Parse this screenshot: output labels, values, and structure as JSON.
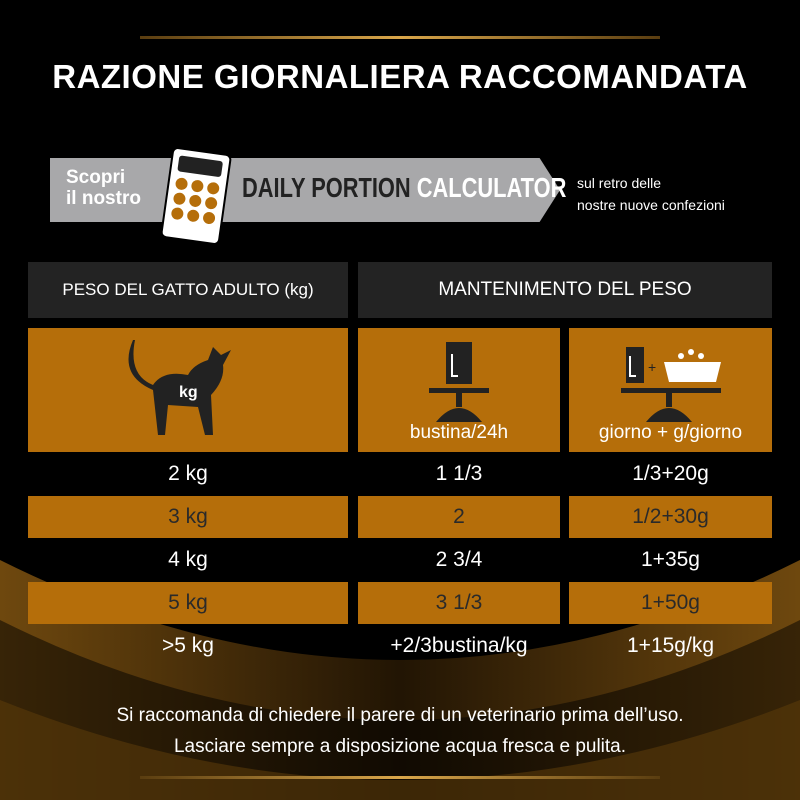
{
  "title": "RAZIONE GIORNALIERA RACCOMANDATA",
  "banner": {
    "scopri_line1": "Scopri",
    "scopri_line2": "il nostro",
    "dpc_part1": "DAILY PORTION",
    "dpc_part2": "CALCULATOR",
    "note_line1": "sul retro delle",
    "note_line2": "nostre nuove confezioni",
    "icon": "calculator-icon"
  },
  "table": {
    "headers": [
      "PESO DEL GATTO ADULTO (kg)",
      "MANTENIMENTO DEL PESO"
    ],
    "icon_labels": {
      "cat": "kg",
      "col2": "bustina/24h",
      "col3": "giorno + g/giorno"
    },
    "rows": [
      [
        "2 kg",
        "1 1/3",
        "1/3+20g"
      ],
      [
        "3 kg",
        "2",
        "1/2+30g"
      ],
      [
        "4 kg",
        "2 3/4",
        "1+35g"
      ],
      [
        "5 kg",
        "3 1/3",
        "1+50g"
      ],
      [
        ">5 kg",
        "+2/3bustina/kg",
        "1+15g/kg"
      ]
    ]
  },
  "footer": [
    "Si raccomanda di chiedere il parere di un veterinario prima dell’uso.",
    "Lasciare sempre a disposizione acqua fresca e pulita."
  ],
  "colors": {
    "accent": "#b56e0a",
    "header_bg": "#232323",
    "banner": "#a8a8aa"
  }
}
